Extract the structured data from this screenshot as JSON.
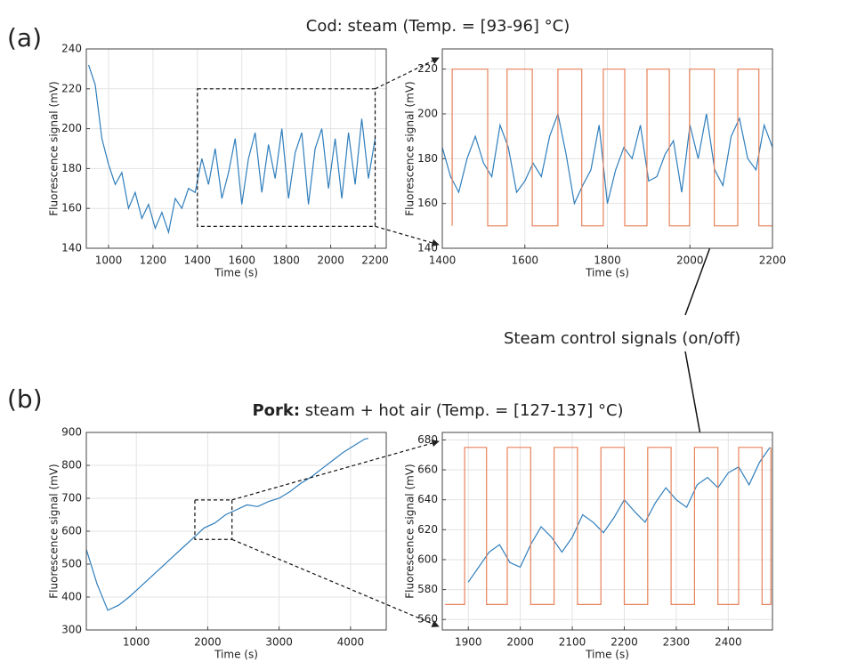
{
  "figure": {
    "label_a": "(a)",
    "label_b": "(b)",
    "title_a": "Cod: steam (Temp. = [93-96] °C)",
    "title_b_bold": "Pork:",
    "title_b": " steam  + hot air (Temp. = [127-137] °C)",
    "annotation": "Steam control signals (on/off)"
  },
  "chart_data": [
    {
      "type": "line",
      "xlabel": "Time (s)",
      "ylabel": "Fluorescence signal (mV)",
      "xlim": [
        900,
        2250
      ],
      "ylim": [
        140,
        240
      ],
      "xticks": [
        1000,
        1200,
        1400,
        1600,
        1800,
        2000,
        2200
      ],
      "yticks": [
        140,
        160,
        180,
        200,
        220,
        240
      ],
      "grid": true,
      "zoom_box": {
        "x": [
          1400,
          2200
        ],
        "y": [
          151,
          220
        ]
      },
      "series": [
        {
          "color": "#2f7ebc",
          "x": [
            910,
            940,
            970,
            1000,
            1030,
            1060,
            1090,
            1120,
            1150,
            1180,
            1210,
            1240,
            1270,
            1300,
            1330,
            1360,
            1390,
            1420,
            1450,
            1480,
            1510,
            1540,
            1570,
            1600,
            1630,
            1660,
            1690,
            1720,
            1750,
            1780,
            1810,
            1840,
            1870,
            1900,
            1930,
            1960,
            1990,
            2020,
            2050,
            2080,
            2110,
            2140,
            2170,
            2200
          ],
          "values": [
            232,
            222,
            195,
            182,
            172,
            178,
            160,
            168,
            155,
            162,
            150,
            158,
            148,
            165,
            160,
            170,
            168,
            185,
            172,
            190,
            165,
            178,
            195,
            162,
            185,
            198,
            168,
            192,
            175,
            200,
            165,
            188,
            198,
            162,
            190,
            200,
            170,
            195,
            165,
            198,
            172,
            205,
            175,
            195
          ]
        }
      ]
    },
    {
      "type": "line",
      "xlabel": "Time (s)",
      "ylabel": "Fluorescence signal (mV)",
      "xlim": [
        1400,
        2200
      ],
      "ylim": [
        140,
        229
      ],
      "xticks": [
        1400,
        1600,
        1800,
        2000,
        2200
      ],
      "yticks": [
        140,
        160,
        180,
        200,
        220
      ],
      "grid": true,
      "series": [
        {
          "color": "#2f7ebc",
          "x": [
            1400,
            1420,
            1440,
            1460,
            1480,
            1500,
            1520,
            1540,
            1560,
            1580,
            1600,
            1620,
            1640,
            1660,
            1680,
            1700,
            1720,
            1740,
            1760,
            1780,
            1800,
            1820,
            1840,
            1860,
            1880,
            1900,
            1920,
            1940,
            1960,
            1980,
            2000,
            2020,
            2040,
            2060,
            2080,
            2100,
            2120,
            2140,
            2160,
            2180,
            2200
          ],
          "values": [
            185,
            172,
            165,
            180,
            190,
            178,
            172,
            195,
            185,
            165,
            170,
            178,
            172,
            190,
            200,
            182,
            160,
            168,
            175,
            195,
            160,
            175,
            185,
            180,
            195,
            170,
            172,
            182,
            188,
            165,
            195,
            180,
            200,
            175,
            168,
            190,
            198,
            180,
            175,
            195,
            185
          ]
        },
        {
          "color": "#e8825a",
          "x": [
            1424,
            1424,
            1510,
            1510,
            1557,
            1557,
            1618,
            1618,
            1680,
            1680,
            1738,
            1738,
            1790,
            1790,
            1842,
            1842,
            1896,
            1896,
            1950,
            1950,
            1999,
            1999,
            2059,
            2059,
            2116,
            2116,
            2167,
            2167,
            2200
          ],
          "values": [
            150,
            220,
            220,
            150,
            150,
            220,
            220,
            150,
            150,
            220,
            220,
            150,
            150,
            220,
            220,
            150,
            150,
            220,
            220,
            150,
            150,
            220,
            220,
            150,
            150,
            220,
            220,
            150,
            150
          ]
        }
      ]
    },
    {
      "type": "line",
      "xlabel": "Time (s)",
      "ylabel": "Fluorescence signal (mV)",
      "xlim": [
        300,
        4500
      ],
      "ylim": [
        300,
        900
      ],
      "xticks": [
        1000,
        2000,
        3000,
        4000
      ],
      "yticks": [
        300,
        400,
        500,
        600,
        700,
        800,
        900
      ],
      "grid": true,
      "zoom_box": {
        "x": [
          1820,
          2340
        ],
        "y": [
          575,
          695
        ]
      },
      "series": [
        {
          "color": "#2f7ebc",
          "x": [
            300,
            450,
            600,
            750,
            900,
            1050,
            1200,
            1350,
            1500,
            1650,
            1800,
            1950,
            2100,
            2250,
            2400,
            2550,
            2700,
            2850,
            3000,
            3150,
            3300,
            3450,
            3600,
            3750,
            3900,
            4050,
            4200,
            4250
          ],
          "values": [
            545,
            440,
            360,
            375,
            400,
            430,
            460,
            490,
            520,
            550,
            580,
            610,
            625,
            650,
            665,
            680,
            675,
            690,
            700,
            720,
            745,
            765,
            790,
            815,
            840,
            860,
            880,
            882
          ]
        }
      ]
    },
    {
      "type": "line",
      "xlabel": "Time (s)",
      "ylabel": "Fluorescence signal (mV)",
      "xlim": [
        1850,
        2485
      ],
      "ylim": [
        553,
        685
      ],
      "xticks": [
        1900,
        2000,
        2100,
        2200,
        2300,
        2400
      ],
      "yticks": [
        560,
        580,
        600,
        620,
        640,
        660,
        680
      ],
      "grid": true,
      "series": [
        {
          "color": "#2f7ebc",
          "x": [
            1900,
            1920,
            1940,
            1960,
            1980,
            2000,
            2020,
            2040,
            2060,
            2080,
            2100,
            2120,
            2140,
            2160,
            2180,
            2200,
            2220,
            2240,
            2260,
            2280,
            2300,
            2320,
            2340,
            2360,
            2380,
            2400,
            2420,
            2440,
            2460,
            2480
          ],
          "values": [
            585,
            595,
            605,
            610,
            598,
            595,
            610,
            622,
            615,
            605,
            615,
            630,
            625,
            618,
            628,
            640,
            632,
            625,
            638,
            648,
            640,
            635,
            650,
            655,
            648,
            658,
            662,
            650,
            665,
            675
          ]
        },
        {
          "color": "#e8825a",
          "x": [
            1855,
            1893,
            1893,
            1935,
            1935,
            1975,
            1975,
            2020,
            2020,
            2065,
            2065,
            2110,
            2110,
            2155,
            2155,
            2200,
            2200,
            2245,
            2245,
            2290,
            2290,
            2335,
            2335,
            2380,
            2380,
            2420,
            2420,
            2465,
            2465,
            2482,
            2482
          ],
          "values": [
            570,
            570,
            675,
            675,
            570,
            570,
            675,
            675,
            570,
            570,
            675,
            675,
            570,
            570,
            675,
            675,
            570,
            570,
            675,
            675,
            570,
            570,
            675,
            675,
            570,
            570,
            675,
            675,
            570,
            570,
            675
          ]
        }
      ]
    }
  ]
}
